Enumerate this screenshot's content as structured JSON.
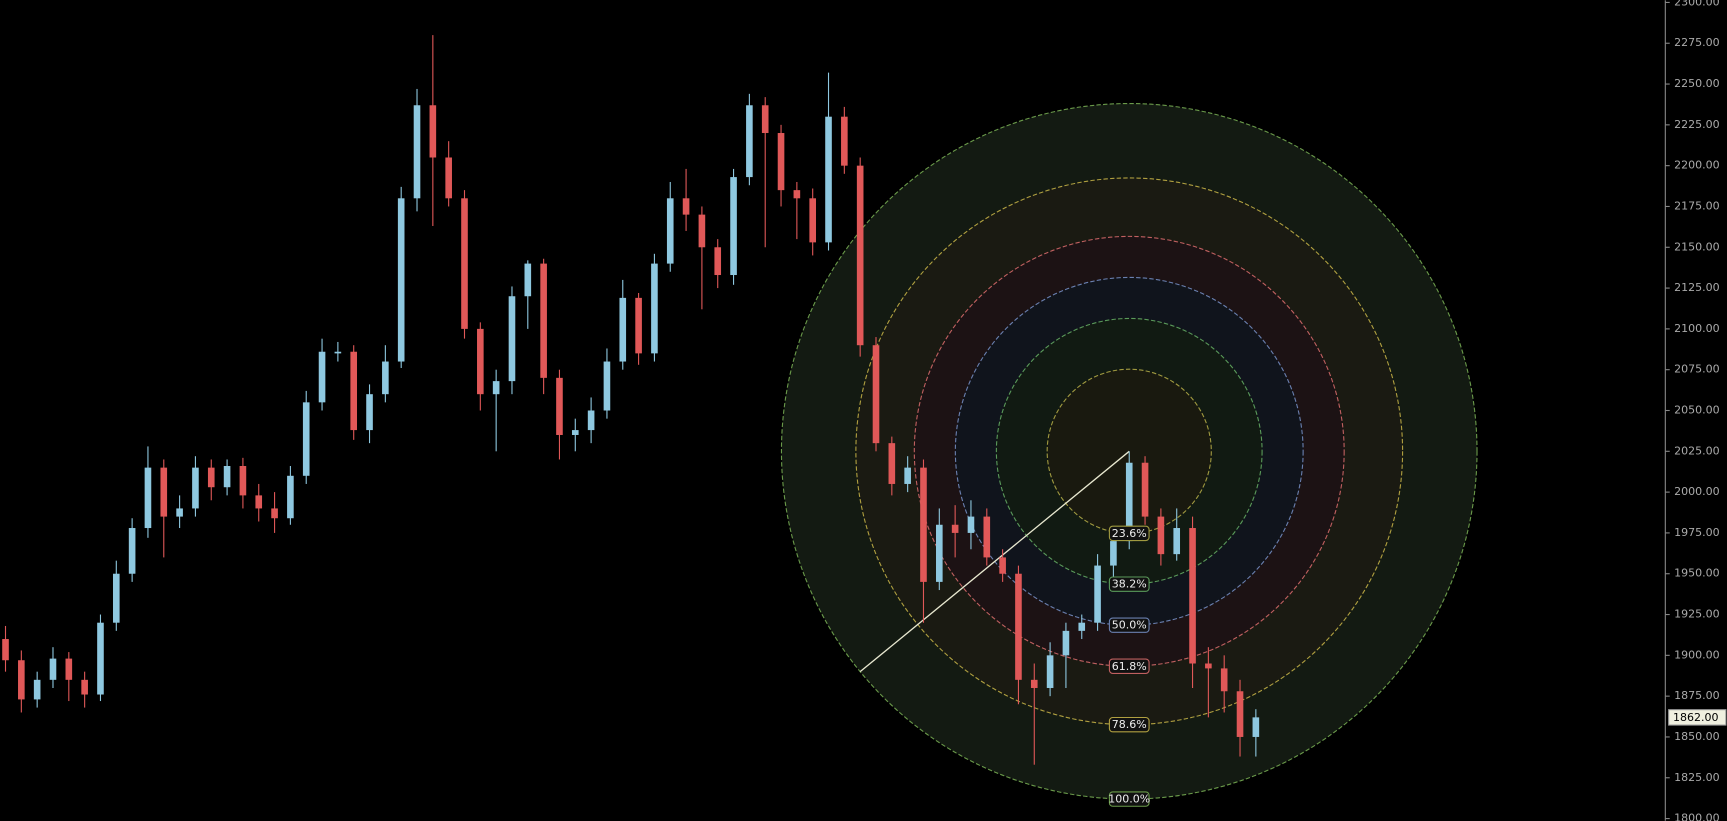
{
  "chart_data": {
    "type": "candlestick",
    "up_color": "#8ec8e0",
    "down_color": "#e05858",
    "open": [
      1910,
      1897,
      1873,
      1885,
      1898,
      1885,
      1876,
      1920,
      1950,
      1978,
      2015,
      1985,
      1990,
      2015,
      2003,
      2016,
      1998,
      1990,
      1984,
      2010,
      2055,
      2086,
      2086,
      2038,
      2060,
      2080,
      2180,
      2237,
      2205,
      2180,
      2100,
      2060,
      2068,
      2120,
      2140,
      2070,
      2035,
      2038,
      2050,
      2080,
      2119,
      2085,
      2140,
      2180,
      2170,
      2150,
      2133,
      2193,
      2237,
      2220,
      2185,
      2180,
      2153,
      2230,
      2200,
      2090,
      2030,
      2005,
      2015,
      1945,
      1980,
      1975,
      1985,
      1960,
      1950,
      1885,
      1880,
      1900,
      1915,
      1920,
      1955,
      1970,
      2018,
      1985,
      1962,
      1978,
      1895,
      1892,
      1878,
      1850
    ],
    "high": [
      1918,
      1903,
      1890,
      1905,
      1902,
      1890,
      1925,
      1958,
      1984,
      2028,
      2020,
      1998,
      2022,
      2020,
      2020,
      2021,
      2005,
      2000,
      2016,
      2062,
      2094,
      2092,
      2090,
      2066,
      2090,
      2187,
      2247,
      2280,
      2215,
      2185,
      2104,
      2075,
      2126,
      2142,
      2143,
      2075,
      2045,
      2058,
      2088,
      2130,
      2122,
      2146,
      2190,
      2198,
      2175,
      2155,
      2198,
      2244,
      2242,
      2225,
      2190,
      2186,
      2257,
      2236,
      2205,
      2095,
      2034,
      2022,
      2020,
      1990,
      1992,
      1995,
      1990,
      1965,
      1955,
      1895,
      1908,
      1920,
      1925,
      1962,
      1978,
      2025,
      2022,
      1990,
      1990,
      1985,
      1905,
      1900,
      1885,
      1867
    ],
    "low": [
      1890,
      1865,
      1868,
      1880,
      1872,
      1868,
      1872,
      1915,
      1945,
      1972,
      1960,
      1978,
      1985,
      1995,
      1998,
      1990,
      1982,
      1975,
      1980,
      2005,
      2050,
      2080,
      2032,
      2030,
      2055,
      2076,
      2172,
      2163,
      2175,
      2094,
      2050,
      2025,
      2060,
      2100,
      2060,
      2020,
      2025,
      2030,
      2045,
      2075,
      2078,
      2080,
      2135,
      2160,
      2112,
      2125,
      2127,
      2188,
      2150,
      2175,
      2155,
      2145,
      2148,
      2195,
      2083,
      2025,
      1998,
      2000,
      1920,
      1940,
      1960,
      1965,
      1955,
      1945,
      1870,
      1833,
      1875,
      1880,
      1910,
      1915,
      1948,
      1965,
      1980,
      1955,
      1958,
      1880,
      1862,
      1865,
      1838,
      1838
    ],
    "close": [
      1897,
      1873,
      1885,
      1898,
      1885,
      1876,
      1920,
      1950,
      1978,
      2015,
      1985,
      1990,
      2015,
      2003,
      2016,
      1998,
      1990,
      1984,
      2010,
      2055,
      2086,
      2086,
      2038,
      2060,
      2080,
      2180,
      2237,
      2205,
      2180,
      2100,
      2060,
      2068,
      2120,
      2140,
      2070,
      2035,
      2038,
      2050,
      2080,
      2119,
      2085,
      2140,
      2180,
      2170,
      2150,
      2133,
      2193,
      2237,
      2220,
      2185,
      2180,
      2153,
      2230,
      2200,
      2090,
      2030,
      2005,
      2015,
      1945,
      1980,
      1975,
      1985,
      1960,
      1950,
      1885,
      1880,
      1900,
      1915,
      1920,
      1955,
      1970,
      2018,
      1985,
      1962,
      1978,
      1895,
      1892,
      1878,
      1850,
      1862
    ],
    "ylim": [
      1800,
      2300
    ],
    "yticks": [
      {
        "value": 1800,
        "label": "1800.00"
      },
      {
        "value": 1825,
        "label": "1825.00"
      },
      {
        "value": 1850,
        "label": "1850.00"
      },
      {
        "value": 1875,
        "label": "1875.00"
      },
      {
        "value": 1900,
        "label": "1900.00"
      },
      {
        "value": 1925,
        "label": "1925.00"
      },
      {
        "value": 1950,
        "label": "1950.00"
      },
      {
        "value": 1975,
        "label": "1975.00"
      },
      {
        "value": 2000,
        "label": "2000.00"
      },
      {
        "value": 2025,
        "label": "2025.00"
      },
      {
        "value": 2050,
        "label": "2050.00"
      },
      {
        "value": 2075,
        "label": "2075.00"
      },
      {
        "value": 2100,
        "label": "2100.00"
      },
      {
        "value": 2125,
        "label": "2125.00"
      },
      {
        "value": 2150,
        "label": "2150.00"
      },
      {
        "value": 2175,
        "label": "2175.00"
      },
      {
        "value": 2200,
        "label": "2200.00"
      },
      {
        "value": 2225,
        "label": "2225.00"
      },
      {
        "value": 2250,
        "label": "2250.00"
      },
      {
        "value": 2275,
        "label": "2275.00"
      },
      {
        "value": 2300,
        "label": "2300.00"
      }
    ],
    "last_price": {
      "value": 1862,
      "label": "1862.00"
    },
    "fib_circle": {
      "anchor_from": {
        "bar": 54,
        "price": 1890
      },
      "anchor_to": {
        "bar": 71,
        "price": 2025
      },
      "levels": [
        {
          "value": 100,
          "label": "100.0%",
          "color": "#6a9a4a",
          "fill": "#131a12"
        },
        {
          "value": 78.6,
          "label": "78.6%",
          "color": "#b0a040",
          "fill": "#1a1a12"
        },
        {
          "value": 61.8,
          "label": "61.8%",
          "color": "#c06060",
          "fill": "#1c1214"
        },
        {
          "value": 50,
          "label": "50.0%",
          "color": "#6a80b0",
          "fill": "#10141c"
        },
        {
          "value": 38.2,
          "label": "38.2%",
          "color": "#5a9a5a",
          "fill": "#111a12"
        },
        {
          "value": 23.6,
          "label": "23.6%",
          "color": "#a09a40",
          "fill": "#19190f"
        }
      ]
    }
  }
}
